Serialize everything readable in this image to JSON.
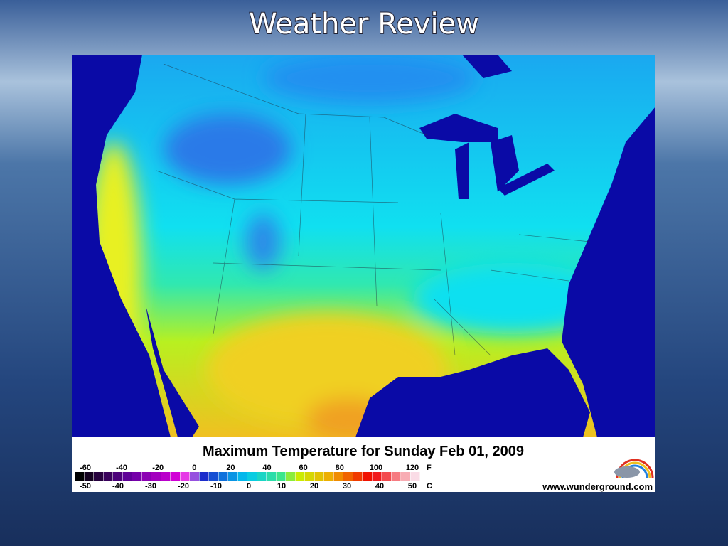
{
  "slide": {
    "title": "Weather Review"
  },
  "map": {
    "title": "Maximum Temperature for Sunday Feb 01, 2009",
    "fahrenheit_labels": [
      -60,
      -40,
      -20,
      0,
      20,
      40,
      60,
      80,
      100,
      120
    ],
    "fahrenheit_unit": "F",
    "celsius_labels": [
      -50,
      -40,
      -30,
      -20,
      -10,
      0,
      10,
      20,
      30,
      40,
      50
    ],
    "celsius_unit": "C",
    "source": "www.wunderground.com"
  }
}
